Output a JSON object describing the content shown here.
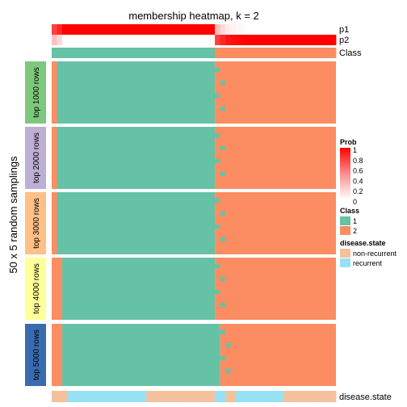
{
  "chart_data": {
    "type": "heatmap",
    "title": "membership heatmap, k = 2",
    "ylabel": "50 x 5 random samplings",
    "n_samples": 54,
    "row_groups": [
      {
        "label": "top 1000 rows",
        "color": "#7DC87D"
      },
      {
        "label": "top 2000 rows",
        "color": "#BEAED4"
      },
      {
        "label": "top 3000 rows",
        "color": "#FDC086"
      },
      {
        "label": "top 4000 rows",
        "color": "#FFFF99"
      },
      {
        "label": "top 5000 rows",
        "color": "#386CB0"
      }
    ],
    "rows_per_group": 50,
    "annotation_rows": [
      {
        "name": "p1",
        "values": [
          0.75,
          0.85,
          1,
          1,
          1,
          1,
          1,
          1,
          1,
          1,
          1,
          1,
          1,
          1,
          1,
          1,
          1,
          1,
          1,
          1,
          1,
          1,
          1,
          1,
          1,
          1,
          1,
          1,
          1,
          1,
          1,
          0.25,
          0.15,
          0.08,
          0.05,
          0.03,
          0.02,
          0,
          0,
          0,
          0,
          0,
          0,
          0,
          0,
          0,
          0,
          0,
          0,
          0,
          0,
          0,
          0,
          0
        ]
      },
      {
        "name": "p2",
        "values": [
          0.25,
          0.15,
          0,
          0,
          0,
          0,
          0,
          0,
          0,
          0,
          0,
          0,
          0,
          0,
          0,
          0,
          0,
          0,
          0,
          0,
          0,
          0,
          0,
          0,
          0,
          0,
          0,
          0,
          0,
          0,
          0,
          0.75,
          0.85,
          0.92,
          0.95,
          0.97,
          0.98,
          1,
          1,
          1,
          1,
          1,
          1,
          1,
          1,
          1,
          1,
          1,
          1,
          1,
          1,
          1,
          1,
          1
        ]
      },
      {
        "name": "Class",
        "values": [
          1,
          1,
          1,
          1,
          1,
          1,
          1,
          1,
          1,
          1,
          1,
          1,
          1,
          1,
          1,
          1,
          1,
          1,
          1,
          1,
          1,
          1,
          1,
          1,
          1,
          1,
          1,
          1,
          1,
          1,
          1,
          2,
          2,
          2,
          2,
          2,
          2,
          2,
          2,
          2,
          2,
          2,
          2,
          2,
          2,
          2,
          2,
          2,
          2,
          2,
          2,
          2,
          2,
          2
        ]
      }
    ],
    "disease_state": {
      "name": "disease.state",
      "values": [
        "non-recurrent",
        "non-recurrent",
        "non-recurrent",
        "recurrent",
        "recurrent",
        "recurrent",
        "recurrent",
        "recurrent",
        "recurrent",
        "recurrent",
        "recurrent",
        "recurrent",
        "recurrent",
        "recurrent",
        "recurrent",
        "recurrent",
        "recurrent",
        "recurrent",
        "non-recurrent",
        "non-recurrent",
        "non-recurrent",
        "non-recurrent",
        "non-recurrent",
        "non-recurrent",
        "non-recurrent",
        "non-recurrent",
        "non-recurrent",
        "non-recurrent",
        "non-recurrent",
        "non-recurrent",
        "non-recurrent",
        "recurrent",
        "recurrent",
        "non-recurrent",
        "non-recurrent",
        "recurrent",
        "recurrent",
        "recurrent",
        "recurrent",
        "recurrent",
        "recurrent",
        "recurrent",
        "recurrent",
        "recurrent",
        "non-recurrent",
        "non-recurrent",
        "non-recurrent",
        "non-recurrent",
        "non-recurrent",
        "non-recurrent",
        "non-recurrent",
        "non-recurrent",
        "non-recurrent",
        "non-recurrent"
      ]
    },
    "group_class2_boundary": [
      1,
      1,
      1,
      2,
      2
    ],
    "group_class1_boundary": [
      31,
      31,
      31,
      31,
      32
    ],
    "legend": {
      "prob": {
        "title": "Prob",
        "ticks": [
          "1",
          "0.8",
          "0.6",
          "0.4",
          "0.2",
          "0"
        ]
      },
      "class": {
        "title": "Class",
        "items": [
          {
            "label": "1",
            "color": "#66C2A5"
          },
          {
            "label": "2",
            "color": "#FC8D62"
          }
        ]
      },
      "disease": {
        "title": "disease.state",
        "items": [
          {
            "label": "non-recurrent",
            "color": "#F4C19C"
          },
          {
            "label": "recurrent",
            "color": "#96E2F4"
          }
        ]
      }
    },
    "colors": {
      "class1": "#66C2A5",
      "class2": "#FC8D62",
      "prob_high": "#FF0000",
      "prob_low": "#FFFFFF"
    },
    "legend_placement": "right",
    "grid": false
  }
}
